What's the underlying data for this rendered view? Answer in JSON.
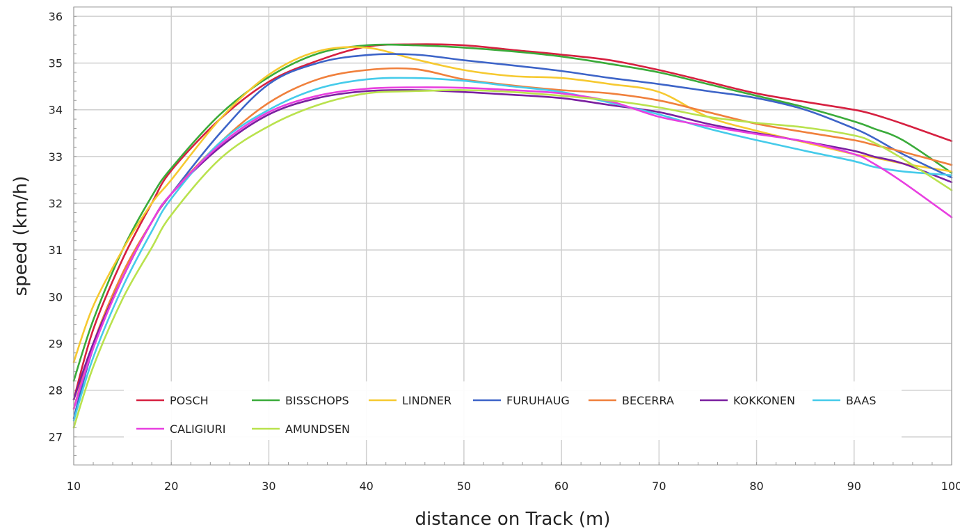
{
  "chart_data": {
    "type": "line",
    "title": "",
    "xlabel": "distance on Track (m)",
    "ylabel": "speed (km/h)",
    "xlim": [
      10,
      100
    ],
    "ylim": [
      26.4,
      36.2
    ],
    "x_ticks": [
      10,
      20,
      30,
      40,
      50,
      60,
      70,
      80,
      90,
      100
    ],
    "y_ticks": [
      27,
      28,
      29,
      30,
      31,
      32,
      33,
      34,
      35,
      36
    ],
    "grid": true,
    "legend_position": "bottom-inside",
    "x": [
      10,
      12,
      15,
      18,
      20,
      25,
      30,
      35,
      40,
      45,
      50,
      55,
      60,
      65,
      70,
      75,
      80,
      85,
      90,
      92,
      95,
      100
    ],
    "series": [
      {
        "name": "POSCH",
        "color": "#d62040",
        "values": [
          27.8,
          29.3,
          30.8,
          32.0,
          32.7,
          33.8,
          34.6,
          35.05,
          35.35,
          35.4,
          35.38,
          35.28,
          35.18,
          35.06,
          34.85,
          34.6,
          34.35,
          34.17,
          34.0,
          33.9,
          33.7,
          33.33
        ]
      },
      {
        "name": "BISSCHOPS",
        "color": "#3aab3a",
        "values": [
          28.2,
          29.5,
          31.0,
          32.15,
          32.75,
          33.9,
          34.7,
          35.2,
          35.38,
          35.38,
          35.33,
          35.25,
          35.14,
          34.98,
          34.8,
          34.55,
          34.3,
          34.05,
          33.75,
          33.6,
          33.35,
          32.65
        ]
      },
      {
        "name": "LINDNER",
        "color": "#f6c930",
        "values": [
          28.6,
          29.8,
          31.0,
          32.0,
          32.5,
          33.8,
          34.75,
          35.25,
          35.33,
          35.08,
          34.85,
          34.72,
          34.68,
          34.55,
          34.38,
          33.85,
          33.55,
          33.3,
          33.05,
          32.98,
          32.85,
          32.68
        ]
      },
      {
        "name": "FURUHAUG",
        "color": "#3d64c8",
        "values": [
          27.4,
          28.9,
          30.4,
          31.6,
          32.2,
          33.5,
          34.55,
          35.0,
          35.17,
          35.18,
          35.06,
          34.95,
          34.83,
          34.68,
          34.55,
          34.4,
          34.25,
          34.0,
          33.6,
          33.4,
          33.05,
          32.55
        ]
      },
      {
        "name": "BECERRA",
        "color": "#f0803c",
        "values": [
          27.6,
          29.0,
          30.5,
          31.6,
          32.2,
          33.3,
          34.15,
          34.65,
          34.85,
          34.87,
          34.65,
          34.52,
          34.42,
          34.35,
          34.2,
          33.95,
          33.7,
          33.52,
          33.35,
          33.25,
          33.1,
          32.82
        ]
      },
      {
        "name": "KOKKONEN",
        "color": "#7a1fa0",
        "values": [
          27.8,
          29.0,
          30.4,
          31.6,
          32.2,
          33.2,
          33.9,
          34.25,
          34.4,
          34.42,
          34.38,
          34.32,
          34.25,
          34.1,
          33.95,
          33.7,
          33.5,
          33.32,
          33.12,
          33.0,
          32.85,
          32.45
        ]
      },
      {
        "name": "BAAS",
        "color": "#45cbea",
        "values": [
          27.35,
          28.7,
          30.2,
          31.4,
          32.1,
          33.3,
          34.0,
          34.45,
          34.65,
          34.68,
          34.62,
          34.5,
          34.38,
          34.15,
          33.9,
          33.6,
          33.35,
          33.12,
          32.9,
          32.78,
          32.68,
          32.6
        ]
      },
      {
        "name": "CALIGIURI",
        "color": "#e83fe0",
        "values": [
          27.6,
          28.9,
          30.4,
          31.6,
          32.2,
          33.25,
          33.95,
          34.3,
          34.45,
          34.48,
          34.47,
          34.42,
          34.35,
          34.18,
          33.85,
          33.65,
          33.48,
          33.32,
          33.05,
          32.85,
          32.45,
          31.7
        ]
      },
      {
        "name": "AMUNDSEN",
        "color": "#b9e24d",
        "values": [
          27.2,
          28.5,
          29.95,
          31.05,
          31.75,
          32.95,
          33.65,
          34.1,
          34.35,
          34.4,
          34.42,
          34.38,
          34.3,
          34.2,
          34.05,
          33.85,
          33.72,
          33.62,
          33.45,
          33.3,
          32.95,
          32.28
        ]
      }
    ]
  }
}
